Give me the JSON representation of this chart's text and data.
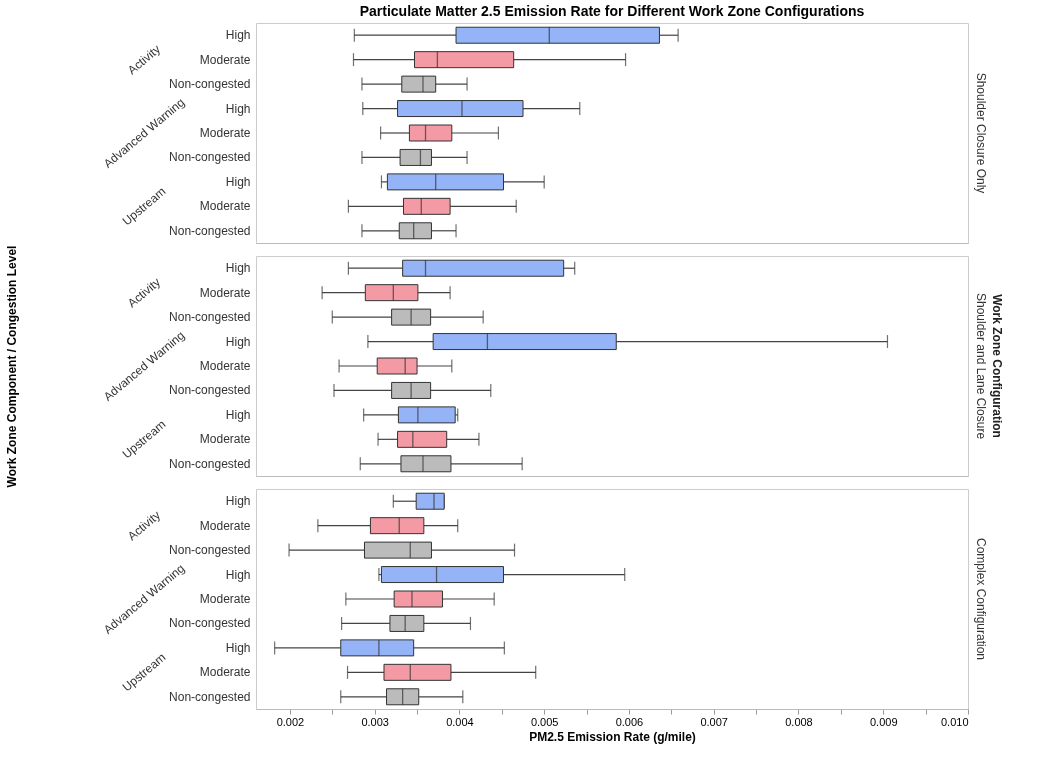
{
  "chart_data": [
    {
      "type": "box",
      "orientation": "horizontal",
      "title": "Particulate Matter 2.5 Emission Rate for Different Work Zone Configurations",
      "y2label": "Shoulder Closure Only",
      "tick_labels": "y",
      "categories": [
        "High",
        "Moderate",
        "Non-congested",
        "High",
        "Moderate",
        "Non-congested",
        "High",
        "Moderate",
        "Non-congested"
      ],
      "annotations": [
        "Activity",
        "Advanced Warning",
        "Upstream"
      ],
      "colors": [
        "#94b4f7",
        "#f49aa5",
        "#bbbbbb",
        "#94b4f7",
        "#f49aa5",
        "#bbbbbb",
        "#94b4f7",
        "#f49aa5",
        "#bbbbbb"
      ],
      "xlim": [
        0.0016,
        0.01
      ],
      "boxes": [
        {
          "low": 0.00276,
          "q1": 0.00396,
          "median": 0.00506,
          "q3": 0.00636,
          "high": 0.00658
        },
        {
          "low": 0.00275,
          "q1": 0.00347,
          "median": 0.00374,
          "q3": 0.00464,
          "high": 0.00596
        },
        {
          "low": 0.00285,
          "q1": 0.00332,
          "median": 0.00357,
          "q3": 0.00372,
          "high": 0.00409
        },
        {
          "low": 0.00286,
          "q1": 0.00327,
          "median": 0.00403,
          "q3": 0.00475,
          "high": 0.00542
        },
        {
          "low": 0.00307,
          "q1": 0.00341,
          "median": 0.0036,
          "q3": 0.00391,
          "high": 0.00446
        },
        {
          "low": 0.00285,
          "q1": 0.0033,
          "median": 0.00354,
          "q3": 0.00367,
          "high": 0.00409
        },
        {
          "low": 0.00308,
          "q1": 0.00315,
          "median": 0.00372,
          "q3": 0.00452,
          "high": 0.005
        },
        {
          "low": 0.00269,
          "q1": 0.00334,
          "median": 0.00355,
          "q3": 0.00389,
          "high": 0.00467
        },
        {
          "low": 0.00285,
          "q1": 0.00329,
          "median": 0.00346,
          "q3": 0.00367,
          "high": 0.00396
        }
      ]
    },
    {
      "type": "box",
      "orientation": "horizontal",
      "y2label": "Shoulder and Lane Closure",
      "ylabel": "Work Zone Component / Congestion Level",
      "tick_labels": "y",
      "categories": [
        "High",
        "Moderate",
        "Non-congested",
        "High",
        "Moderate",
        "Non-congested",
        "High",
        "Moderate",
        "Non-congested"
      ],
      "annotations": [
        "Activity",
        "Advanced Warning",
        "Upstream",
        "Work Zone Configuration"
      ],
      "colors": [
        "#94b4f7",
        "#f49aa5",
        "#bbbbbb",
        "#94b4f7",
        "#f49aa5",
        "#bbbbbb",
        "#94b4f7",
        "#f49aa5",
        "#bbbbbb"
      ],
      "xlim": [
        0.0016,
        0.01
      ],
      "boxes": [
        {
          "low": 0.00269,
          "q1": 0.00333,
          "median": 0.0036,
          "q3": 0.00523,
          "high": 0.00536
        },
        {
          "low": 0.00238,
          "q1": 0.00289,
          "median": 0.00322,
          "q3": 0.00351,
          "high": 0.00389
        },
        {
          "low": 0.0025,
          "q1": 0.0032,
          "median": 0.00343,
          "q3": 0.00366,
          "high": 0.00428
        },
        {
          "low": 0.00292,
          "q1": 0.00369,
          "median": 0.00433,
          "q3": 0.00585,
          "high": 0.00905
        },
        {
          "low": 0.00258,
          "q1": 0.00303,
          "median": 0.00336,
          "q3": 0.0035,
          "high": 0.00391
        },
        {
          "low": 0.00252,
          "q1": 0.0032,
          "median": 0.00343,
          "q3": 0.00366,
          "high": 0.00437
        },
        {
          "low": 0.00287,
          "q1": 0.00328,
          "median": 0.00351,
          "q3": 0.00395,
          "high": 0.00398
        },
        {
          "low": 0.00304,
          "q1": 0.00327,
          "median": 0.00345,
          "q3": 0.00385,
          "high": 0.00423
        },
        {
          "low": 0.00283,
          "q1": 0.00331,
          "median": 0.00357,
          "q3": 0.0039,
          "high": 0.00474
        }
      ]
    },
    {
      "type": "box",
      "orientation": "horizontal",
      "y2label": "Complex Configuration",
      "xlabel": "PM2.5 Emission Rate (g/mile)",
      "categories": [
        "High",
        "Moderate",
        "Non-congested",
        "High",
        "Moderate",
        "Non-congested",
        "High",
        "Moderate",
        "Non-congested"
      ],
      "annotations": [
        "Activity",
        "Advanced Warning",
        "Upstream"
      ],
      "colors": [
        "#94b4f7",
        "#f49aa5",
        "#bbbbbb",
        "#94b4f7",
        "#f49aa5",
        "#bbbbbb",
        "#94b4f7",
        "#f49aa5",
        "#bbbbbb"
      ],
      "xlim": [
        0.0016,
        0.01
      ],
      "xticks": [
        0.002,
        {
          "value": 0.0025,
          "label": null
        },
        0.003,
        {
          "value": 0.0035,
          "label": null
        },
        0.004,
        {
          "value": 0.0045,
          "label": null
        },
        0.005,
        {
          "value": 0.0055,
          "label": null
        },
        0.006,
        {
          "value": 0.0065,
          "label": null
        },
        0.007,
        {
          "value": 0.0075,
          "label": null
        },
        0.008,
        {
          "value": 0.0085,
          "label": null
        },
        0.009,
        {
          "value": 0.0095,
          "label": null
        },
        {
          "value": 0.01,
          "label": "0.010"
        }
      ],
      "boxes": [
        {
          "low": 0.00322,
          "q1": 0.00349,
          "median": 0.0037,
          "q3": 0.00382,
          "high": 0.00382
        },
        {
          "low": 0.00233,
          "q1": 0.00295,
          "median": 0.00329,
          "q3": 0.00358,
          "high": 0.00398
        },
        {
          "low": 0.00199,
          "q1": 0.00288,
          "median": 0.00342,
          "q3": 0.00367,
          "high": 0.00465
        },
        {
          "low": 0.00305,
          "q1": 0.00308,
          "median": 0.00373,
          "q3": 0.00452,
          "high": 0.00595
        },
        {
          "low": 0.00266,
          "q1": 0.00323,
          "median": 0.00344,
          "q3": 0.0038,
          "high": 0.00441
        },
        {
          "low": 0.00261,
          "q1": 0.00318,
          "median": 0.00336,
          "q3": 0.00358,
          "high": 0.00413
        },
        {
          "low": 0.00182,
          "q1": 0.0026,
          "median": 0.00305,
          "q3": 0.00346,
          "high": 0.00453
        },
        {
          "low": 0.00268,
          "q1": 0.00311,
          "median": 0.00342,
          "q3": 0.0039,
          "high": 0.0049
        },
        {
          "low": 0.0026,
          "q1": 0.00314,
          "median": 0.00333,
          "q3": 0.00352,
          "high": 0.00404
        }
      ]
    }
  ]
}
